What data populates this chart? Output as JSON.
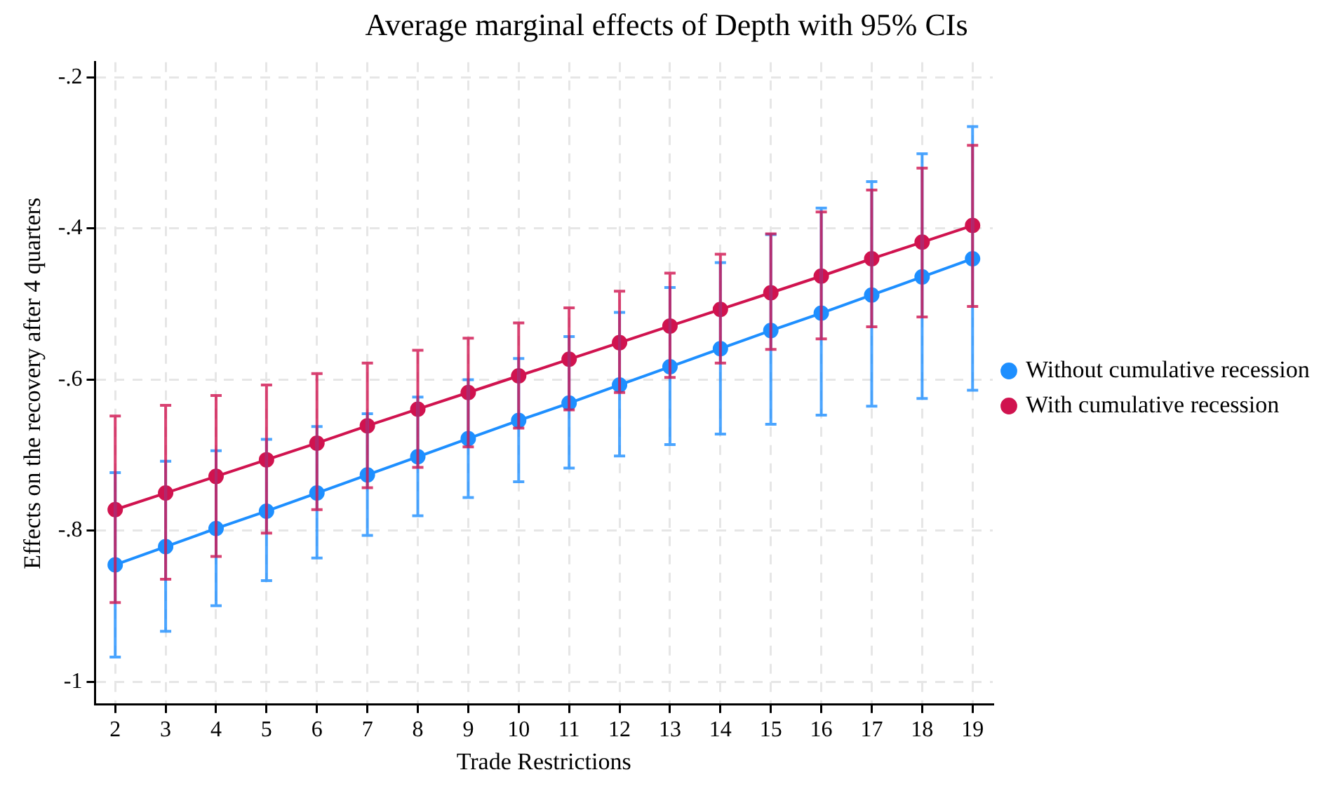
{
  "chart_data": {
    "type": "line",
    "title": "Average marginal effects of Depth with 95% CIs",
    "xlabel": "Trade Restrictions",
    "ylabel": "Effects on the recovery after 4 quarters",
    "x": [
      2,
      3,
      4,
      5,
      6,
      7,
      8,
      9,
      10,
      11,
      12,
      13,
      14,
      15,
      16,
      17,
      18,
      19
    ],
    "xlim": [
      1.6,
      19.4
    ],
    "xticks": [
      2,
      3,
      4,
      5,
      6,
      7,
      8,
      9,
      10,
      11,
      12,
      13,
      14,
      15,
      16,
      17,
      18,
      19
    ],
    "ylim": [
      -1.03,
      -0.18
    ],
    "yticks": [
      {
        "value": -1,
        "label": "-1"
      },
      {
        "value": -0.8,
        "label": "-.8"
      },
      {
        "value": -0.6,
        "label": "-.6"
      },
      {
        "value": -0.4,
        "label": "-.4"
      },
      {
        "value": -0.2,
        "label": "-.2"
      }
    ],
    "series": [
      {
        "name": "Without cumulative recession",
        "color": "#1e8fff",
        "values": [
          -0.845,
          -0.821,
          -0.797,
          -0.774,
          -0.75,
          -0.726,
          -0.702,
          -0.678,
          -0.654,
          -0.631,
          -0.607,
          -0.583,
          -0.559,
          -0.535,
          -0.512,
          -0.488,
          -0.464,
          -0.44
        ],
        "errors": [
          [
            -0.967,
            -0.723
          ],
          [
            -0.933,
            -0.708
          ],
          [
            -0.899,
            -0.694
          ],
          [
            -0.866,
            -0.679
          ],
          [
            -0.836,
            -0.662
          ],
          [
            -0.806,
            -0.645
          ],
          [
            -0.78,
            -0.623
          ],
          [
            -0.756,
            -0.6
          ],
          [
            -0.735,
            -0.572
          ],
          [
            -0.717,
            -0.543
          ],
          [
            -0.701,
            -0.511
          ],
          [
            -0.686,
            -0.478
          ],
          [
            -0.672,
            -0.445
          ],
          [
            -0.659,
            -0.408
          ],
          [
            -0.647,
            -0.373
          ],
          [
            -0.635,
            -0.338
          ],
          [
            -0.625,
            -0.301
          ],
          [
            -0.614,
            -0.265
          ]
        ]
      },
      {
        "name": "With cumulative recession",
        "color": "#d0134f",
        "values": [
          -0.772,
          -0.75,
          -0.728,
          -0.706,
          -0.684,
          -0.661,
          -0.639,
          -0.617,
          -0.595,
          -0.573,
          -0.551,
          -0.529,
          -0.507,
          -0.485,
          -0.463,
          -0.44,
          -0.418,
          -0.396
        ],
        "errors": [
          [
            -0.895,
            -0.648
          ],
          [
            -0.864,
            -0.634
          ],
          [
            -0.834,
            -0.621
          ],
          [
            -0.803,
            -0.607
          ],
          [
            -0.772,
            -0.592
          ],
          [
            -0.743,
            -0.578
          ],
          [
            -0.716,
            -0.561
          ],
          [
            -0.689,
            -0.545
          ],
          [
            -0.664,
            -0.525
          ],
          [
            -0.64,
            -0.505
          ],
          [
            -0.617,
            -0.483
          ],
          [
            -0.597,
            -0.459
          ],
          [
            -0.578,
            -0.434
          ],
          [
            -0.56,
            -0.407
          ],
          [
            -0.546,
            -0.378
          ],
          [
            -0.53,
            -0.349
          ],
          [
            -0.517,
            -0.32
          ],
          [
            -0.503,
            -0.29
          ]
        ]
      }
    ],
    "grid": true,
    "legend": "right",
    "marker": "circle",
    "line_style": "solid"
  }
}
